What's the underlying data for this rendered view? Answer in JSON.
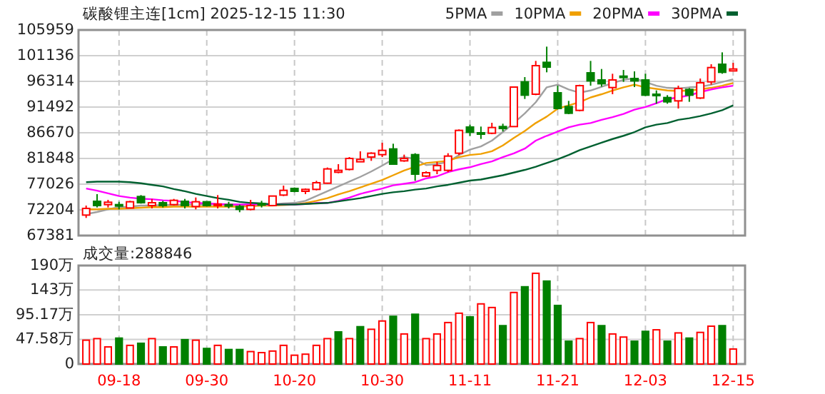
{
  "chart_data": [
    {
      "type": "candlestick",
      "title": "碳酸锂主连[1cm] 2025-12-15 11:30",
      "legend": "top right",
      "grid": true,
      "tick_labels": "y",
      "categories": [
        null,
        null,
        null,
        null,
        null,
        null,
        null,
        null,
        null,
        null,
        null,
        null,
        null,
        null,
        null,
        null,
        null,
        null,
        null,
        null,
        null,
        null,
        null,
        null,
        null,
        null,
        null,
        null,
        null,
        null,
        null,
        null,
        null,
        null,
        null,
        null,
        null,
        null,
        null,
        null,
        null,
        null,
        null,
        null,
        null,
        null,
        null,
        null,
        null,
        null,
        null,
        null,
        null,
        null,
        null,
        null,
        null,
        null,
        null,
        null
      ],
      "ylim": [
        67381,
        105959
      ],
      "yticks": [
        67381,
        72204,
        77026,
        81848,
        86670,
        91492,
        96314,
        101136,
        105959
      ],
      "ohlc": [
        [
          71221,
          73008,
          70685,
          72472
        ],
        [
          73811,
          75151,
          72650,
          73008
        ],
        [
          73186,
          74079,
          72650,
          73633
        ],
        [
          73186,
          73722,
          72293,
          72918
        ],
        [
          72561,
          73900,
          72472,
          73722
        ],
        [
          74704,
          74972,
          73365,
          73543
        ],
        [
          73008,
          74258,
          72472,
          73543
        ],
        [
          73543,
          73900,
          72650,
          73008
        ],
        [
          73186,
          74258,
          73008,
          73990
        ],
        [
          73811,
          74258,
          72472,
          73008
        ],
        [
          72829,
          74526,
          72293,
          73722
        ],
        [
          73722,
          73722,
          72829,
          73008
        ],
        [
          73008,
          74972,
          72472,
          73276
        ],
        [
          73186,
          73722,
          72472,
          73008
        ],
        [
          72829,
          73186,
          71757,
          72293
        ],
        [
          72293,
          74079,
          72114,
          73008
        ],
        [
          73365,
          73900,
          72650,
          73097
        ],
        [
          73008,
          74794,
          73008,
          74794
        ],
        [
          74972,
          76758,
          74794,
          75865
        ],
        [
          76222,
          76401,
          75508,
          75687
        ],
        [
          75687,
          76222,
          75151,
          76044
        ],
        [
          76044,
          77651,
          75865,
          77294
        ],
        [
          77205,
          80151,
          77115,
          79884
        ],
        [
          79259,
          80777,
          79080,
          79616
        ],
        [
          79794,
          82115,
          79616,
          81847
        ],
        [
          81223,
          83188,
          81223,
          81670
        ],
        [
          82115,
          83009,
          81401,
          82831
        ],
        [
          82563,
          84795,
          82115,
          83366
        ],
        [
          83634,
          84616,
          80687,
          80777
        ],
        [
          81401,
          82563,
          81223,
          81847
        ],
        [
          82563,
          82831,
          77651,
          78901
        ],
        [
          78544,
          79437,
          78366,
          79170
        ],
        [
          79616,
          81223,
          78901,
          80509
        ],
        [
          79616,
          82831,
          79259,
          82294
        ],
        [
          82831,
          87296,
          82473,
          87117
        ],
        [
          87742,
          88189,
          86045,
          86760
        ],
        [
          86670,
          87832,
          85509,
          86492
        ],
        [
          86581,
          88546,
          86403,
          87653
        ],
        [
          87832,
          88367,
          86938,
          87474
        ],
        [
          87832,
          95333,
          87832,
          95243
        ],
        [
          96225,
          97119,
          93011,
          93725
        ],
        [
          93904,
          100155,
          93725,
          99261
        ],
        [
          99887,
          102834,
          98012,
          98994
        ],
        [
          94172,
          95511,
          91046,
          91226
        ],
        [
          91583,
          92654,
          90153,
          90333
        ],
        [
          90867,
          95690,
          90689,
          95511
        ],
        [
          97922,
          100155,
          95511,
          96404
        ],
        [
          96583,
          98637,
          95333,
          95868
        ],
        [
          95154,
          97744,
          93904,
          96583
        ],
        [
          97297,
          98458,
          96225,
          97029
        ],
        [
          96851,
          98190,
          95243,
          96404
        ],
        [
          96583,
          97744,
          93547,
          93725
        ],
        [
          93904,
          94618,
          92118,
          93636
        ],
        [
          93279,
          93725,
          92118,
          92475
        ],
        [
          92654,
          95511,
          91226,
          94975
        ],
        [
          94797,
          95064,
          92475,
          93725
        ],
        [
          93190,
          96851,
          93011,
          96047
        ],
        [
          96225,
          99529,
          95690,
          98905
        ],
        [
          99529,
          101762,
          97744,
          98012
        ],
        [
          98280,
          99798,
          98280,
          98637
        ]
      ],
      "colors": [
        "#ff0000",
        "#008000",
        "#ff0000",
        "#008000",
        "#ff0000",
        "#008000",
        "#ff0000",
        "#008000",
        "#ff0000",
        "#008000",
        "#ff0000",
        "#008000",
        "#ff0000",
        "#008000",
        "#008000",
        "#ff0000",
        "#008000",
        "#ff0000",
        "#ff0000",
        "#008000",
        "#ff0000",
        "#ff0000",
        "#ff0000",
        "#ff0000",
        "#ff0000",
        "#ff0000",
        "#ff0000",
        "#ff0000",
        "#008000",
        "#ff0000",
        "#008000",
        "#ff0000",
        "#ff0000",
        "#ff0000",
        "#ff0000",
        "#008000",
        "#008000",
        "#ff0000",
        "#008000",
        "#ff0000",
        "#008000",
        "#ff0000",
        "#008000",
        "#008000",
        "#008000",
        "#ff0000",
        "#008000",
        "#008000",
        "#ff0000",
        "#008000",
        "#008000",
        "#008000",
        "#008000",
        "#008000",
        "#ff0000",
        "#008000",
        "#ff0000",
        "#ff0000",
        "#008000",
        "#ff0000"
      ],
      "series": [
        {
          "name": "5PMA",
          "type": "line",
          "color": "#a0a0a0",
          "values": [
            71400,
            71800,
            72300,
            72700,
            72800,
            73000,
            73000,
            73100,
            73100,
            73200,
            73200,
            73200,
            73200,
            73200,
            73100,
            73100,
            73200,
            73200,
            73400,
            73500,
            73900,
            74800,
            75700,
            76600,
            77500,
            78400,
            79400,
            80500,
            81700,
            82100,
            81800,
            80600,
            80800,
            81200,
            82500,
            83500,
            84100,
            85200,
            86800,
            88500,
            90300,
            92400,
            95200,
            95700,
            94800,
            94200,
            94600,
            95300,
            96000,
            96600,
            96900,
            96200,
            95500,
            95100,
            95000,
            95200,
            95300,
            95700,
            96200,
            96700
          ]
        },
        {
          "name": "10PMA",
          "type": "line",
          "color": "#f0a000",
          "values": [
            72300,
            72300,
            72400,
            72400,
            72500,
            72600,
            72700,
            72700,
            72800,
            72800,
            72800,
            72800,
            72800,
            72800,
            72800,
            72900,
            73000,
            73000,
            73100,
            73200,
            73500,
            73900,
            74400,
            75100,
            75700,
            76400,
            77100,
            77800,
            78700,
            79600,
            80300,
            81000,
            81200,
            81400,
            82100,
            82500,
            82700,
            83200,
            84300,
            85700,
            87000,
            88500,
            89700,
            91200,
            91800,
            92400,
            93300,
            93900,
            94600,
            95200,
            95700,
            95200,
            94900,
            94600,
            94500,
            94600,
            94800,
            95100,
            95500,
            96000
          ]
        },
        {
          "name": "20PMA",
          "type": "line",
          "color": "#ff00ff",
          "values": [
            76200,
            75800,
            75300,
            74800,
            74500,
            74300,
            74200,
            74000,
            73900,
            73700,
            73500,
            73400,
            73300,
            73200,
            73200,
            73200,
            73200,
            73200,
            73200,
            73200,
            73300,
            73500,
            73500,
            73900,
            74500,
            75200,
            75700,
            76200,
            76800,
            77100,
            77400,
            78100,
            78500,
            79300,
            79800,
            80200,
            80800,
            81300,
            82100,
            82800,
            83700,
            85200,
            86100,
            86900,
            87700,
            88200,
            88500,
            89100,
            89600,
            90200,
            91000,
            91500,
            92200,
            93000,
            93300,
            93700,
            94300,
            94800,
            95200,
            95500
          ]
        },
        {
          "name": "30PMA",
          "type": "line",
          "color": "#006030",
          "values": [
            77400,
            77500,
            77500,
            77500,
            77400,
            77200,
            76900,
            76600,
            76100,
            75700,
            75200,
            74800,
            74400,
            74100,
            73700,
            73500,
            73400,
            73200,
            73200,
            73200,
            73300,
            73400,
            73500,
            73800,
            74100,
            74400,
            74800,
            75200,
            75500,
            75700,
            76000,
            76200,
            76600,
            76900,
            77300,
            77700,
            77900,
            78300,
            78700,
            79200,
            79700,
            80300,
            81000,
            81700,
            82500,
            83400,
            84100,
            84800,
            85500,
            86100,
            86800,
            87700,
            88200,
            88500,
            89100,
            89400,
            89800,
            90300,
            90900,
            91800
          ]
        }
      ]
    },
    {
      "type": "bar",
      "title": "成交量:288846",
      "grid": true,
      "categories": [
        null,
        null,
        null,
        "09-18",
        null,
        null,
        null,
        null,
        null,
        null,
        null,
        "09-30",
        null,
        null,
        null,
        null,
        null,
        null,
        null,
        "10-20",
        null,
        null,
        null,
        null,
        null,
        null,
        null,
        "10-30",
        null,
        null,
        null,
        null,
        null,
        null,
        null,
        "11-11",
        null,
        null,
        null,
        null,
        null,
        null,
        null,
        "11-21",
        null,
        null,
        null,
        null,
        null,
        null,
        null,
        "12-03",
        null,
        null,
        null,
        null,
        null,
        null,
        null,
        "12-15"
      ],
      "ylim": [
        0,
        190
      ],
      "yticks": [
        0,
        {
          "value": 47.58,
          "label": "47.58万"
        },
        {
          "value": 95.17,
          "label": "95.17万"
        },
        {
          "value": 143,
          "label": "143万"
        },
        {
          "value": 190,
          "label": "190万"
        }
      ],
      "values": [
        46,
        49,
        33,
        50,
        36,
        40,
        49,
        33,
        33,
        47,
        46,
        30,
        36,
        28,
        28,
        24,
        22,
        25,
        36,
        17,
        19,
        36,
        49,
        62,
        49,
        72,
        67,
        83,
        92,
        58,
        96,
        49,
        58,
        80,
        98,
        91,
        116,
        109,
        74,
        138,
        149,
        175,
        160,
        113,
        44,
        49,
        80,
        74,
        58,
        52,
        44,
        63,
        66,
        44,
        60,
        50,
        61,
        73,
        74,
        28.88
      ],
      "colors": [
        "#ff0000",
        "#ff0000",
        "#ff0000",
        "#008000",
        "#ff0000",
        "#008000",
        "#ff0000",
        "#008000",
        "#ff0000",
        "#008000",
        "#ff0000",
        "#008000",
        "#ff0000",
        "#008000",
        "#008000",
        "#ff0000",
        "#ff0000",
        "#ff0000",
        "#ff0000",
        "#ff0000",
        "#ff0000",
        "#ff0000",
        "#ff0000",
        "#008000",
        "#ff0000",
        "#008000",
        "#ff0000",
        "#ff0000",
        "#008000",
        "#ff0000",
        "#008000",
        "#ff0000",
        "#ff0000",
        "#ff0000",
        "#ff0000",
        "#008000",
        "#ff0000",
        "#ff0000",
        "#008000",
        "#ff0000",
        "#008000",
        "#ff0000",
        "#008000",
        "#008000",
        "#008000",
        "#ff0000",
        "#ff0000",
        "#008000",
        "#ff0000",
        "#ff0000",
        "#008000",
        "#008000",
        "#ff0000",
        "#008000",
        "#ff0000",
        "#008000",
        "#ff0000",
        "#ff0000",
        "#008000",
        "#ff0000"
      ]
    }
  ]
}
